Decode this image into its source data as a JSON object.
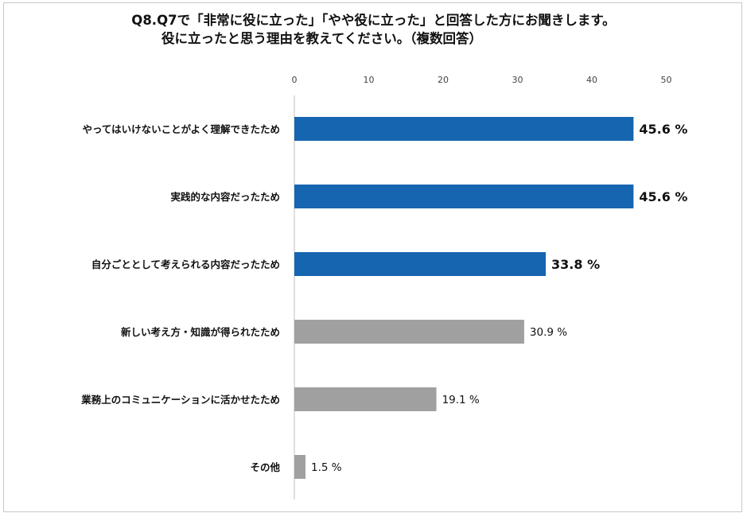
{
  "title": {
    "line1": "Q8.Q7で「非常に役に立った」「やや役に立った」と回答した方にお聞きします。",
    "line2": "役に立ったと思う理由を教えてください。（複数回答）"
  },
  "colors": {
    "highlight": "#1565b0",
    "normal": "#a0a0a0",
    "axis": "#bfbfbf"
  },
  "chart_data": {
    "type": "bar",
    "orientation": "horizontal",
    "xlim": [
      0,
      50
    ],
    "ticks": [
      "0",
      "10",
      "20",
      "30",
      "40",
      "50"
    ],
    "categories": [
      "やってはいけないことがよく理解できたため",
      "実践的な内容だったため",
      "自分ごととして考えられる内容だったため",
      "新しい考え方・知識が得られたため",
      "業務上のコミュニケーションに活かせたため",
      "その他"
    ],
    "values": [
      45.6,
      45.6,
      33.8,
      30.9,
      19.1,
      1.5
    ],
    "value_labels": [
      "45.6 %",
      "45.6 %",
      "33.8 %",
      "30.9 %",
      "19.1 %",
      "1.5 %"
    ],
    "highlighted": [
      true,
      true,
      true,
      false,
      false,
      false
    ]
  }
}
